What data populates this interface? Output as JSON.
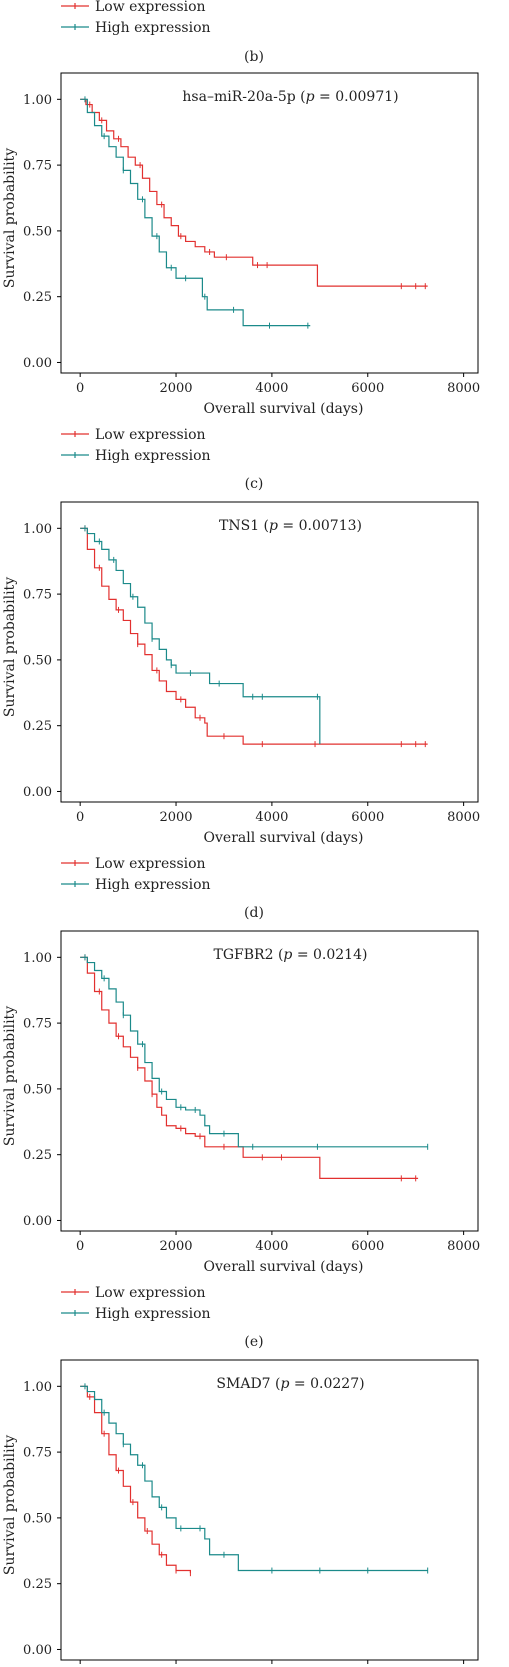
{
  "colors": {
    "low": "#e2302f",
    "high": "#1b8a8a",
    "axis": "#000000"
  },
  "legend": {
    "low_label": "Low expression",
    "high_label": "High expression"
  },
  "captions": [
    "(b)",
    "(c)",
    "(d)",
    "(e)"
  ],
  "axes": {
    "xlabel": "Overall survival (days)",
    "ylabel": "Survival probability",
    "xticks": [
      0,
      2000,
      4000,
      6000,
      8000
    ],
    "yticks": [
      "0.00",
      "0.25",
      "0.50",
      "0.75",
      "1.00"
    ]
  },
  "chart_data": [
    {
      "type": "line",
      "title": "hsa–miR-20a-5p",
      "p_value": "0.00971",
      "xlim": [
        -400,
        8300
      ],
      "ylim": [
        -0.04,
        1.1
      ],
      "series": [
        {
          "name": "Low expression",
          "x": [
            0,
            120,
            250,
            400,
            550,
            700,
            850,
            1000,
            1150,
            1300,
            1450,
            1600,
            1750,
            1900,
            2050,
            2200,
            2400,
            2600,
            2800,
            3000,
            3300,
            3600,
            3800,
            4100,
            4950,
            7250
          ],
          "y": [
            1.0,
            0.98,
            0.95,
            0.92,
            0.88,
            0.85,
            0.82,
            0.78,
            0.75,
            0.7,
            0.65,
            0.6,
            0.55,
            0.52,
            0.48,
            0.46,
            0.44,
            0.42,
            0.4,
            0.4,
            0.4,
            0.37,
            0.37,
            0.37,
            0.29,
            0.29
          ],
          "censor_x": [
            200,
            450,
            800,
            1250,
            1700,
            2100,
            2700,
            3050,
            3700,
            3900,
            6700,
            7000,
            7200
          ]
        },
        {
          "name": "High expression",
          "x": [
            0,
            150,
            300,
            450,
            600,
            750,
            900,
            1050,
            1200,
            1350,
            1500,
            1650,
            1800,
            2000,
            2300,
            2550,
            2650,
            3300,
            3400,
            4800
          ],
          "y": [
            1.0,
            0.95,
            0.9,
            0.86,
            0.82,
            0.78,
            0.73,
            0.68,
            0.62,
            0.55,
            0.48,
            0.42,
            0.36,
            0.32,
            0.32,
            0.25,
            0.2,
            0.2,
            0.14,
            0.14
          ],
          "censor_x": [
            100,
            500,
            900,
            1300,
            1600,
            1900,
            2200,
            2600,
            3200,
            3950,
            4750
          ]
        }
      ]
    },
    {
      "type": "line",
      "title": "TNS1",
      "p_value": "0.00713",
      "xlim": [
        -400,
        8300
      ],
      "ylim": [
        -0.04,
        1.1
      ],
      "series": [
        {
          "name": "Low expression",
          "x": [
            0,
            150,
            300,
            450,
            600,
            750,
            900,
            1050,
            1200,
            1350,
            1500,
            1650,
            1800,
            2000,
            2200,
            2400,
            2600,
            2650,
            3300,
            3400,
            7250
          ],
          "y": [
            1.0,
            0.92,
            0.85,
            0.78,
            0.73,
            0.69,
            0.65,
            0.6,
            0.56,
            0.52,
            0.46,
            0.42,
            0.38,
            0.35,
            0.32,
            0.28,
            0.26,
            0.21,
            0.21,
            0.18,
            0.18
          ],
          "censor_x": [
            100,
            400,
            800,
            1200,
            1600,
            2100,
            2500,
            3000,
            3800,
            4900,
            6700,
            7000,
            7200
          ]
        },
        {
          "name": "High expression",
          "x": [
            0,
            150,
            300,
            450,
            600,
            750,
            900,
            1050,
            1200,
            1350,
            1500,
            1650,
            1800,
            1900,
            2000,
            2600,
            2700,
            3300,
            3400,
            4950,
            5000
          ],
          "y": [
            1.0,
            0.98,
            0.95,
            0.92,
            0.88,
            0.84,
            0.79,
            0.74,
            0.7,
            0.64,
            0.58,
            0.54,
            0.5,
            0.48,
            0.45,
            0.45,
            0.41,
            0.41,
            0.36,
            0.36,
            0.18
          ],
          "censor_x": [
            100,
            400,
            700,
            1100,
            1500,
            1900,
            2300,
            2900,
            3600,
            3800,
            4950
          ]
        }
      ]
    },
    {
      "type": "line",
      "title": "TGFBR2",
      "p_value": "0.0214",
      "xlim": [
        -400,
        8300
      ],
      "ylim": [
        -0.04,
        1.1
      ],
      "series": [
        {
          "name": "Low expression",
          "x": [
            0,
            150,
            300,
            450,
            600,
            750,
            900,
            1050,
            1200,
            1350,
            1500,
            1600,
            1700,
            1800,
            2000,
            2200,
            2400,
            2600,
            2800,
            3300,
            3400,
            4950,
            5000,
            7050
          ],
          "y": [
            1.0,
            0.94,
            0.87,
            0.8,
            0.75,
            0.7,
            0.66,
            0.62,
            0.58,
            0.53,
            0.48,
            0.43,
            0.4,
            0.36,
            0.35,
            0.33,
            0.32,
            0.28,
            0.28,
            0.28,
            0.24,
            0.24,
            0.16,
            0.16
          ],
          "censor_x": [
            100,
            400,
            800,
            1200,
            1500,
            2100,
            2500,
            3000,
            3800,
            4200,
            6700,
            7000
          ]
        },
        {
          "name": "High expression",
          "x": [
            0,
            150,
            300,
            450,
            600,
            750,
            900,
            1050,
            1200,
            1350,
            1500,
            1650,
            1800,
            2000,
            2200,
            2500,
            2600,
            2700,
            3200,
            3300,
            7250
          ],
          "y": [
            1.0,
            0.98,
            0.95,
            0.92,
            0.88,
            0.83,
            0.78,
            0.72,
            0.67,
            0.6,
            0.54,
            0.49,
            0.46,
            0.43,
            0.42,
            0.4,
            0.36,
            0.33,
            0.33,
            0.28,
            0.28
          ],
          "censor_x": [
            100,
            500,
            900,
            1300,
            1700,
            2100,
            2400,
            3000,
            3600,
            4950,
            7250
          ]
        }
      ]
    },
    {
      "type": "line",
      "title": "SMAD7",
      "p_value": "0.0227",
      "xlim": [
        -400,
        8300
      ],
      "ylim": [
        -0.04,
        1.1
      ],
      "series": [
        {
          "name": "Low expression",
          "x": [
            0,
            150,
            300,
            450,
            600,
            750,
            900,
            1050,
            1200,
            1350,
            1500,
            1650,
            1800,
            2000,
            2300
          ],
          "y": [
            1.0,
            0.96,
            0.9,
            0.82,
            0.74,
            0.68,
            0.62,
            0.56,
            0.5,
            0.45,
            0.4,
            0.36,
            0.32,
            0.3,
            0.29
          ],
          "censor_x": [
            200,
            500,
            800,
            1100,
            1400,
            1700,
            2000,
            2300
          ]
        },
        {
          "name": "High expression",
          "x": [
            0,
            150,
            300,
            450,
            600,
            750,
            900,
            1050,
            1200,
            1350,
            1500,
            1650,
            1800,
            2000,
            2200,
            2600,
            2700,
            3300,
            7250
          ],
          "y": [
            1.0,
            0.98,
            0.95,
            0.9,
            0.86,
            0.82,
            0.78,
            0.74,
            0.7,
            0.64,
            0.58,
            0.54,
            0.5,
            0.46,
            0.46,
            0.42,
            0.36,
            0.3,
            0.3
          ],
          "censor_x": [
            100,
            500,
            900,
            1300,
            1700,
            2100,
            2500,
            3000,
            4000,
            5000,
            6000,
            7250
          ]
        }
      ]
    }
  ]
}
